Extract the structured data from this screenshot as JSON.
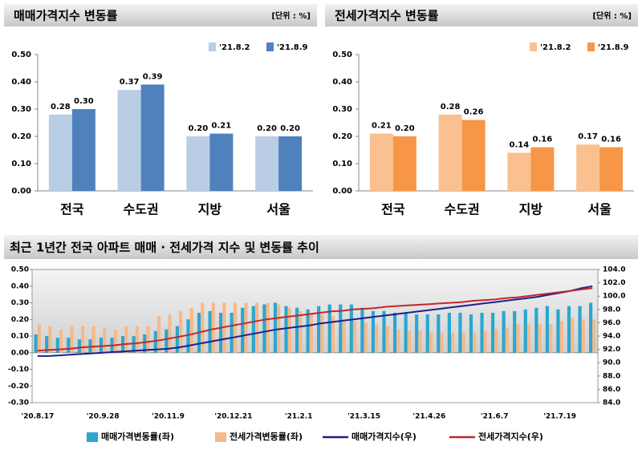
{
  "chart_data": [
    {
      "type": "bar",
      "title": "매매가격지수 변동률",
      "unit": "[단위 : %]",
      "categories": [
        "전국",
        "수도권",
        "지방",
        "서울"
      ],
      "series": [
        {
          "name": "'21.8.2",
          "color": "#b9cde5",
          "values": [
            0.28,
            0.37,
            0.2,
            0.2
          ],
          "value_labels": [
            "0.28",
            "0.37",
            "0.20",
            "0.20"
          ]
        },
        {
          "name": "'21.8.9",
          "color": "#4f81bd",
          "values": [
            0.3,
            0.39,
            0.21,
            0.2
          ],
          "value_labels": [
            "0.30",
            "0.39",
            "0.21",
            "0.20"
          ]
        }
      ],
      "ylim": [
        0,
        0.5
      ],
      "yticks": [
        {
          "value": 0,
          "label": "0.00"
        },
        {
          "value": 0.1,
          "label": "0.10"
        },
        {
          "value": 0.2,
          "label": "0.20"
        },
        {
          "value": 0.3,
          "label": "0.30"
        },
        {
          "value": 0.4,
          "label": "0.40"
        },
        {
          "value": 0.5,
          "label": "0.50"
        }
      ]
    },
    {
      "type": "bar",
      "title": "전세가격지수 변동률",
      "unit": "[단위 : %]",
      "categories": [
        "전국",
        "수도권",
        "지방",
        "서울"
      ],
      "series": [
        {
          "name": "'21.8.2",
          "color": "#fac090",
          "values": [
            0.21,
            0.28,
            0.14,
            0.17
          ],
          "value_labels": [
            "0.21",
            "0.28",
            "0.14",
            "0.17"
          ]
        },
        {
          "name": "'21.8.9",
          "color": "#f79646",
          "values": [
            0.2,
            0.26,
            0.16,
            0.16
          ],
          "value_labels": [
            "0.20",
            "0.26",
            "0.16",
            "0.16"
          ]
        }
      ],
      "ylim": [
        0,
        0.5
      ],
      "yticks": [
        {
          "value": 0,
          "label": "0.00"
        },
        {
          "value": 0.1,
          "label": "0.10"
        },
        {
          "value": 0.2,
          "label": "0.20"
        },
        {
          "value": 0.3,
          "label": "0.30"
        },
        {
          "value": 0.4,
          "label": "0.40"
        },
        {
          "value": 0.5,
          "label": "0.50"
        }
      ]
    },
    {
      "type": "combo",
      "title": "최근 1년간 전국 아파트 매매 · 전세가격 지수 및 변동률 추이",
      "categories": [
        "'20.8.17",
        null,
        null,
        null,
        null,
        null,
        "'20.9.28",
        null,
        null,
        null,
        null,
        null,
        "'20.11.9",
        null,
        null,
        null,
        null,
        null,
        "'20.12.21",
        null,
        null,
        null,
        null,
        null,
        "'21.2.1",
        null,
        null,
        null,
        null,
        null,
        "'21.3.15",
        null,
        null,
        null,
        null,
        null,
        "'21.4.26",
        null,
        null,
        null,
        null,
        null,
        "'21.6.7",
        null,
        null,
        null,
        null,
        null,
        "'21.7.19",
        null,
        null,
        null
      ],
      "series": [
        {
          "name": "매매가격변동률(좌)",
          "type": "bar",
          "color": "#2aa7d0",
          "values": [
            0.11,
            0.1,
            0.09,
            0.09,
            0.08,
            0.08,
            0.09,
            0.09,
            0.1,
            0.1,
            0.11,
            0.13,
            0.14,
            0.16,
            0.2,
            0.24,
            0.25,
            0.24,
            0.24,
            0.27,
            0.28,
            0.29,
            0.3,
            0.28,
            0.27,
            0.26,
            0.28,
            0.29,
            0.29,
            0.29,
            0.27,
            0.25,
            0.25,
            0.24,
            0.24,
            0.23,
            0.23,
            0.23,
            0.24,
            0.24,
            0.23,
            0.24,
            0.24,
            0.25,
            0.25,
            0.26,
            0.27,
            0.28,
            0.26,
            0.28,
            0.28,
            0.3
          ]
        },
        {
          "name": "전세가격변동률(좌)",
          "type": "bar",
          "color": "#f5b98a",
          "values": [
            0.17,
            0.16,
            0.14,
            0.16,
            0.16,
            0.16,
            0.15,
            0.14,
            0.16,
            0.16,
            0.16,
            0.22,
            0.23,
            0.25,
            0.27,
            0.3,
            0.3,
            0.3,
            0.3,
            0.3,
            0.3,
            0.3,
            0.29,
            0.27,
            0.25,
            0.24,
            0.23,
            0.22,
            0.2,
            0.19,
            0.18,
            0.17,
            0.16,
            0.14,
            0.13,
            0.13,
            0.12,
            0.12,
            0.12,
            0.12,
            0.12,
            0.13,
            0.14,
            0.15,
            0.17,
            0.17,
            0.17,
            0.17,
            0.19,
            0.21,
            0.2,
            0.2
          ]
        },
        {
          "name": "매매가격지수(우)",
          "type": "line",
          "axis": "y2",
          "color": "#1f1f8c",
          "values": [
            91.0,
            91.0,
            91.1,
            91.2,
            91.3,
            91.4,
            91.5,
            91.6,
            91.7,
            91.8,
            91.9,
            92.0,
            92.1,
            92.3,
            92.6,
            92.9,
            93.2,
            93.5,
            93.8,
            94.1,
            94.4,
            94.7,
            95.0,
            95.2,
            95.4,
            95.6,
            95.9,
            96.1,
            96.3,
            96.5,
            96.7,
            96.9,
            97.1,
            97.3,
            97.5,
            97.7,
            97.9,
            98.1,
            98.3,
            98.5,
            98.7,
            98.9,
            99.1,
            99.3,
            99.5,
            99.7,
            99.9,
            100.2,
            100.5,
            100.8,
            101.2,
            101.5
          ]
        },
        {
          "name": "전세가격지수(우)",
          "type": "line",
          "axis": "y2",
          "color": "#c0282d",
          "values": [
            91.8,
            91.9,
            92.0,
            92.1,
            92.3,
            92.4,
            92.5,
            92.6,
            92.8,
            92.9,
            93.1,
            93.3,
            93.6,
            93.9,
            94.2,
            94.6,
            95.0,
            95.3,
            95.6,
            95.9,
            96.2,
            96.5,
            96.7,
            96.9,
            97.1,
            97.3,
            97.5,
            97.7,
            97.8,
            98.0,
            98.1,
            98.2,
            98.4,
            98.5,
            98.6,
            98.7,
            98.8,
            98.9,
            99.0,
            99.1,
            99.3,
            99.4,
            99.5,
            99.7,
            99.8,
            100.0,
            100.2,
            100.4,
            100.6,
            100.8,
            101.0,
            101.2
          ]
        }
      ],
      "ylim": [
        -0.3,
        0.5
      ],
      "yticks": [
        {
          "value": -0.3,
          "label": "-0.30"
        },
        {
          "value": -0.2,
          "label": "-0.20"
        },
        {
          "value": -0.1,
          "label": "-0.10"
        },
        {
          "value": 0,
          "label": "0.00"
        },
        {
          "value": 0.1,
          "label": "0.10"
        },
        {
          "value": 0.2,
          "label": "0.20"
        },
        {
          "value": 0.3,
          "label": "0.30"
        },
        {
          "value": 0.4,
          "label": "0.40"
        },
        {
          "value": 0.5,
          "label": "0.50"
        }
      ],
      "y2lim": [
        84,
        104
      ],
      "y2ticks": [
        {
          "value": 84,
          "label": "84.0"
        },
        {
          "value": 86,
          "label": "86.0"
        },
        {
          "value": 88,
          "label": "88.0"
        },
        {
          "value": 90,
          "label": "90.0"
        },
        {
          "value": 92,
          "label": "92.0"
        },
        {
          "value": 94,
          "label": "94.0"
        },
        {
          "value": 96,
          "label": "96.0"
        },
        {
          "value": 98,
          "label": "98.0"
        },
        {
          "value": 100,
          "label": "100.0"
        },
        {
          "value": 102,
          "label": "102.0"
        },
        {
          "value": 104,
          "label": "104.0"
        }
      ]
    }
  ]
}
